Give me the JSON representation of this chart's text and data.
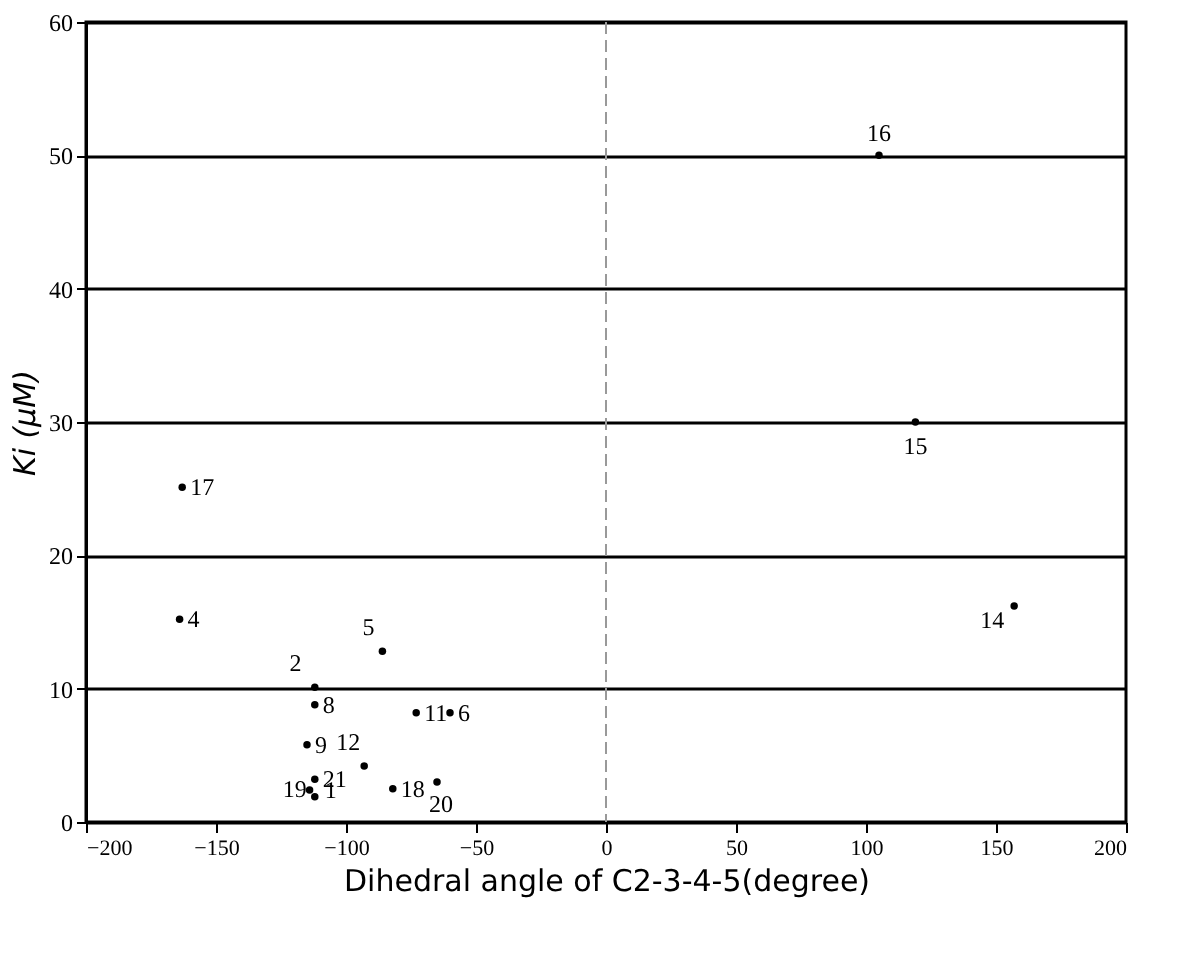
{
  "chart_data": {
    "type": "scatter",
    "xlabel": "Dihedral angle of C2-3-4-5(degree)",
    "ylabel": "Ki (μM)",
    "x": [
      -114,
      -112,
      -164,
      -86,
      -60,
      -112,
      -115,
      -73,
      -93,
      -157,
      -163,
      -82,
      -65,
      -112,
      -112,
      157,
      119,
      105
    ],
    "series": [
      {
        "color": "#000000",
        "values": [
          2.4,
          10.1,
          15.2,
          12.8,
          8.2,
          8.8,
          5.8,
          8.2,
          4.2,
          null,
          25.1,
          2.5,
          3.0,
          3.2,
          1.9,
          16.2,
          30.0,
          50.0
        ]
      }
    ],
    "annotations": [
      {
        "text": "1",
        "x": -112,
        "y": 2.4
      },
      {
        "text": "2",
        "x": -114,
        "y": 10.1
      },
      {
        "text": "4",
        "x": -164,
        "y": 15.2
      },
      {
        "text": "5",
        "x": -86,
        "y": 12.8
      },
      {
        "text": "6",
        "x": -60,
        "y": 8.2
      },
      {
        "text": "8",
        "x": -112,
        "y": 8.8
      },
      {
        "text": "9",
        "x": -115,
        "y": 5.8
      },
      {
        "text": "11",
        "x": -73,
        "y": 8.2
      },
      {
        "text": "12",
        "x": -93,
        "y": 4.2
      },
      {
        "text": "17",
        "x": -163,
        "y": 25.1
      },
      {
        "text": "18",
        "x": -82,
        "y": 2.5
      },
      {
        "text": "20",
        "x": -65,
        "y": 3.0
      },
      {
        "text": "21",
        "x": -112,
        "y": 3.2
      },
      {
        "text": "19",
        "x": -112,
        "y": 1.9
      },
      {
        "text": "14",
        "x": 157,
        "y": 16.2
      },
      {
        "text": "15",
        "x": 119,
        "y": 30.0
      },
      {
        "text": "16",
        "x": 105,
        "y": 50.0
      }
    ],
    "xlim": [
      -200,
      200
    ],
    "xticks": [
      -200,
      -150,
      -100,
      -50,
      0,
      50,
      100,
      150,
      200
    ],
    "ylim": [
      0,
      60
    ],
    "yticks": [
      0,
      10,
      20,
      30,
      40,
      50,
      60
    ],
    "grid": "y",
    "marker": "circle",
    "ref_lines": [
      {
        "axis": "x",
        "value": 0,
        "line_style": "dashed",
        "color": "#999999"
      }
    ]
  }
}
